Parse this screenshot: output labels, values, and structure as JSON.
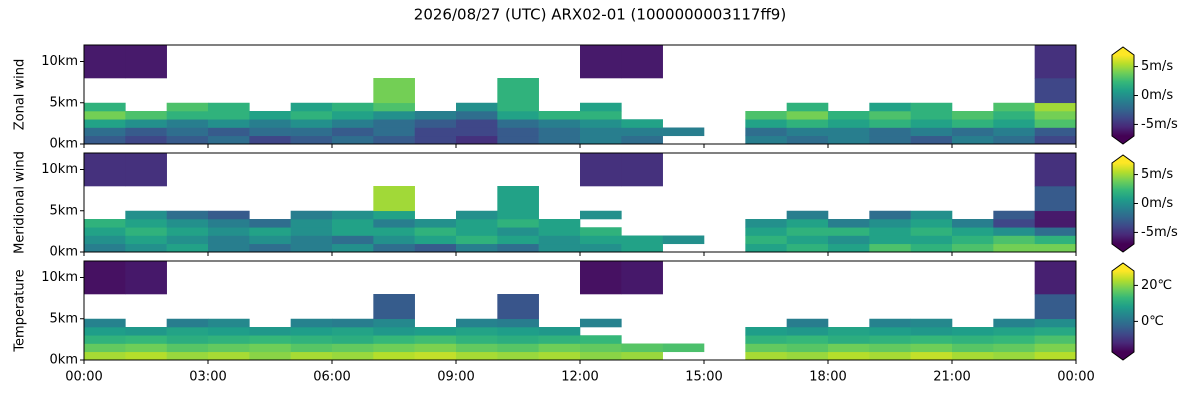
{
  "title": "2026/08/27 (UTC) ARX02-01 (1000000003117ff9)",
  "chart_data": [
    {
      "type": "heatmap",
      "ylabel": "Zonal wind",
      "colormap": "viridis",
      "xlim": [
        0,
        24
      ],
      "ylim": [
        0,
        12
      ],
      "xbins": [
        0,
        1,
        2,
        3,
        4,
        5,
        6,
        7,
        8,
        9,
        10,
        11,
        12,
        13,
        14,
        15,
        16,
        17,
        18,
        19,
        20,
        21,
        22,
        23,
        24
      ],
      "ybins": [
        0,
        1,
        2,
        3,
        4,
        5,
        8,
        12
      ],
      "yticks": [
        {
          "value": 0,
          "label": "0km"
        },
        {
          "value": 5,
          "label": "5km"
        },
        {
          "value": 10,
          "label": "10km"
        }
      ],
      "clim": [
        -7,
        7
      ],
      "cticks": [
        {
          "value": -5,
          "label": "-5m/s"
        },
        {
          "value": 0,
          "label": "0m/s"
        },
        {
          "value": 5,
          "label": "5m/s"
        }
      ],
      "values": [
        [
          -3,
          -4,
          -3,
          -2,
          -4,
          -3,
          -2,
          -3,
          -4,
          -5,
          -3,
          -2,
          -1,
          -2,
          null,
          null,
          -1,
          -2,
          -1,
          -2,
          -3,
          -1,
          -2,
          -4
        ],
        [
          -2,
          -3,
          -2,
          -3,
          -2,
          -2,
          -3,
          -2,
          -4,
          -4,
          -3,
          -2,
          -1,
          -1,
          -1,
          null,
          -2,
          -1,
          -1,
          -2,
          -1,
          -2,
          -1,
          -3
        ],
        [
          1,
          0,
          -1,
          0,
          -1,
          0,
          -1,
          -2,
          -3,
          -4,
          -2,
          -1,
          0,
          1,
          null,
          null,
          1,
          2,
          1,
          2,
          1,
          2,
          1,
          3
        ],
        [
          4,
          3,
          2,
          2,
          1,
          2,
          1,
          0,
          -1,
          -2,
          1,
          2,
          2,
          null,
          null,
          null,
          3,
          4,
          2,
          3,
          2,
          3,
          2,
          4
        ],
        [
          2,
          null,
          3,
          2,
          null,
          1,
          2,
          3,
          null,
          0,
          2,
          null,
          1,
          null,
          null,
          null,
          null,
          2,
          null,
          1,
          2,
          null,
          3,
          5
        ],
        [
          null,
          null,
          null,
          null,
          null,
          null,
          null,
          4,
          null,
          null,
          2,
          null,
          null,
          null,
          null,
          null,
          null,
          null,
          null,
          null,
          null,
          null,
          null,
          -4
        ],
        [
          -6,
          -6,
          null,
          null,
          null,
          null,
          null,
          null,
          null,
          null,
          null,
          null,
          -6,
          -6,
          null,
          null,
          null,
          null,
          null,
          null,
          null,
          null,
          null,
          -5
        ]
      ]
    },
    {
      "type": "heatmap",
      "ylabel": "Meridional wind",
      "colormap": "viridis",
      "xlim": [
        0,
        24
      ],
      "ylim": [
        0,
        12
      ],
      "xbins": [
        0,
        1,
        2,
        3,
        4,
        5,
        6,
        7,
        8,
        9,
        10,
        11,
        12,
        13,
        14,
        15,
        16,
        17,
        18,
        19,
        20,
        21,
        22,
        23,
        24
      ],
      "ybins": [
        0,
        1,
        2,
        3,
        4,
        5,
        8,
        12
      ],
      "yticks": [
        {
          "value": 0,
          "label": "0km"
        },
        {
          "value": 5,
          "label": "5km"
        },
        {
          "value": 10,
          "label": "10km"
        }
      ],
      "clim": [
        -7,
        7
      ],
      "cticks": [
        {
          "value": -5,
          "label": "-5m/s"
        },
        {
          "value": 0,
          "label": "0m/s"
        },
        {
          "value": 5,
          "label": "5m/s"
        }
      ],
      "values": [
        [
          -1,
          0,
          1,
          -1,
          -2,
          -1,
          0,
          -2,
          -3,
          -1,
          -2,
          0,
          0,
          1,
          null,
          null,
          1,
          2,
          1,
          3,
          2,
          3,
          4,
          4
        ],
        [
          0,
          1,
          0,
          -1,
          0,
          -1,
          -2,
          0,
          1,
          2,
          1,
          0,
          1,
          1,
          0,
          null,
          2,
          1,
          0,
          1,
          1,
          2,
          3,
          2
        ],
        [
          1,
          2,
          1,
          0,
          1,
          0,
          1,
          1,
          2,
          1,
          0,
          1,
          2,
          null,
          null,
          null,
          1,
          2,
          2,
          1,
          2,
          1,
          0,
          -2
        ],
        [
          2,
          1,
          0,
          -1,
          -2,
          0,
          1,
          -1,
          0,
          1,
          2,
          1,
          null,
          null,
          null,
          null,
          0,
          1,
          -1,
          0,
          1,
          -1,
          -4,
          -6
        ],
        [
          null,
          0,
          -2,
          -3,
          null,
          -1,
          0,
          1,
          null,
          0,
          1,
          null,
          0,
          null,
          null,
          null,
          null,
          -1,
          null,
          -2,
          0,
          null,
          -3,
          -6
        ],
        [
          null,
          null,
          null,
          null,
          null,
          null,
          null,
          5,
          null,
          null,
          1,
          null,
          null,
          null,
          null,
          null,
          null,
          null,
          null,
          null,
          null,
          null,
          null,
          -3
        ],
        [
          -5,
          -5,
          null,
          null,
          null,
          null,
          null,
          null,
          null,
          null,
          null,
          null,
          -5,
          -5,
          null,
          null,
          null,
          null,
          null,
          null,
          null,
          null,
          null,
          -5
        ]
      ]
    },
    {
      "type": "heatmap",
      "ylabel": "Temperature",
      "colormap": "viridis",
      "xlim": [
        0,
        24
      ],
      "ylim": [
        0,
        12
      ],
      "xbins": [
        0,
        1,
        2,
        3,
        4,
        5,
        6,
        7,
        8,
        9,
        10,
        11,
        12,
        13,
        14,
        15,
        16,
        17,
        18,
        19,
        20,
        21,
        22,
        23,
        24
      ],
      "ybins": [
        0,
        1,
        2,
        3,
        4,
        5,
        8,
        12
      ],
      "xticks": [
        {
          "value": 0,
          "label": "00:00"
        },
        {
          "value": 3,
          "label": "03:00"
        },
        {
          "value": 6,
          "label": "06:00"
        },
        {
          "value": 9,
          "label": "09:00"
        },
        {
          "value": 12,
          "label": "12:00"
        },
        {
          "value": 15,
          "label": "15:00"
        },
        {
          "value": 18,
          "label": "18:00"
        },
        {
          "value": 21,
          "label": "21:00"
        },
        {
          "value": 24,
          "label": "00:00"
        }
      ],
      "yticks": [
        {
          "value": 0,
          "label": "0km"
        },
        {
          "value": 5,
          "label": "5km"
        },
        {
          "value": 10,
          "label": "10km"
        }
      ],
      "clim": [
        -17,
        28
      ],
      "cticks": [
        {
          "value": 0,
          "label": "0℃"
        },
        {
          "value": 20,
          "label": "20℃"
        }
      ],
      "values": [
        [
          22,
          23,
          21,
          22,
          20,
          22,
          21,
          23,
          24,
          22,
          21,
          22,
          20,
          21,
          null,
          null,
          22,
          21,
          23,
          22,
          24,
          22,
          21,
          23
        ],
        [
          17,
          18,
          16,
          17,
          18,
          16,
          17,
          18,
          19,
          17,
          16,
          18,
          17,
          16,
          15,
          null,
          17,
          16,
          18,
          17,
          18,
          16,
          17,
          19
        ],
        [
          12,
          13,
          11,
          12,
          13,
          12,
          11,
          13,
          14,
          12,
          11,
          12,
          13,
          null,
          null,
          null,
          12,
          13,
          11,
          12,
          13,
          12,
          13,
          15
        ],
        [
          8,
          7,
          9,
          8,
          7,
          8,
          9,
          7,
          8,
          9,
          8,
          7,
          null,
          null,
          null,
          null,
          8,
          7,
          9,
          8,
          7,
          8,
          9,
          10
        ],
        [
          3,
          null,
          2,
          4,
          null,
          3,
          2,
          4,
          null,
          3,
          2,
          null,
          3,
          null,
          null,
          null,
          null,
          2,
          null,
          3,
          4,
          null,
          3,
          5
        ],
        [
          null,
          null,
          null,
          null,
          null,
          null,
          null,
          -4,
          null,
          null,
          -5,
          null,
          null,
          null,
          null,
          null,
          null,
          null,
          null,
          null,
          null,
          null,
          null,
          -4
        ],
        [
          -15,
          -14,
          null,
          null,
          null,
          null,
          null,
          null,
          null,
          null,
          null,
          null,
          -15,
          -14,
          null,
          null,
          null,
          null,
          null,
          null,
          null,
          null,
          null,
          -13
        ]
      ]
    }
  ]
}
